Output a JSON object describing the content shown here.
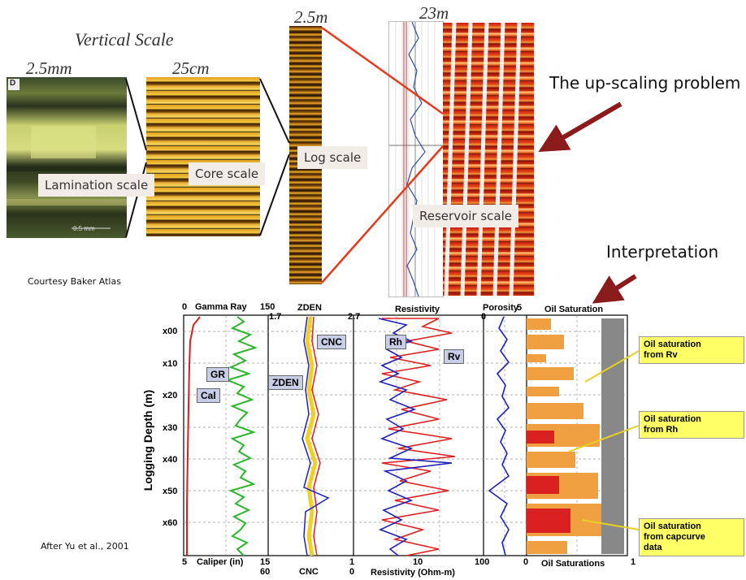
{
  "top": {
    "vertical_scale": "Vertical Scale",
    "scale_2_5mm": "2.5mm",
    "scale_25cm": "25cm",
    "scale_2_5m": "2.5m",
    "scale_23m": "23m",
    "lamination": "Lamination scale",
    "core": "Core scale",
    "log": "Log scale",
    "reservoir": "Reservoir scale",
    "upscaling": "The up-scaling problem",
    "interpretation": "Interpretation",
    "courtesy": "Courtesy Baker Atlas",
    "thin_section_mark": "0.5 mm",
    "thin_section_letter": "D"
  },
  "log_plot": {
    "after": "After Yu et al., 2001",
    "ylabel": "Logging Depth (m)",
    "depth_ticks": [
      "x00",
      "x10",
      "x20",
      "x30",
      "x40",
      "x50",
      "x60"
    ],
    "track1_top": {
      "left": "0",
      "title": "Gamma Ray",
      "right": "150"
    },
    "track1_bottom": {
      "left": "5",
      "title": "Caliper (in)",
      "right": "15"
    },
    "track2_top": {
      "left": "1.7",
      "title": "ZDEN",
      "right": "2.7"
    },
    "track2_bottom": {
      "left": "60",
      "title": "CNC",
      "right": "0"
    },
    "track2_bottom_extra": "1",
    "track3_top": {
      "title": "Resistivity"
    },
    "track3_bottom": {
      "left": "1",
      "mid": "10",
      "right": "100",
      "title": "Resistivity (Ohm-m)"
    },
    "track4_top": {
      "title": "Porosity",
      "left": "0",
      "right": ".5"
    },
    "track5_top": {
      "title": "Oil Saturation"
    },
    "track5_bottom": {
      "left": "0",
      "title": "Oil Saturations",
      "right": "1"
    },
    "tags": {
      "gr": "GR",
      "cal": "Cal",
      "cnc": "CNC",
      "zden": "ZDEN",
      "rh": "Rh",
      "rv": "Rv"
    },
    "boxes": {
      "b1": [
        "Oil saturation",
        "from Rv"
      ],
      "b2": [
        "Oil saturation",
        "from Rh"
      ],
      "b3": [
        "Oil saturation",
        "from capcurve",
        "data"
      ]
    }
  },
  "colors": {
    "gr": "#2db52d",
    "cal": "#d42020",
    "zden": "#2020c0",
    "cnc": "#e02020",
    "fill": "#f0d020",
    "rv": "#e02020",
    "rh": "#2020c0",
    "arrow": "#8b1a1a",
    "oil_orange": "#f0a040",
    "oil_red": "#d82020",
    "gray": "#888888"
  }
}
